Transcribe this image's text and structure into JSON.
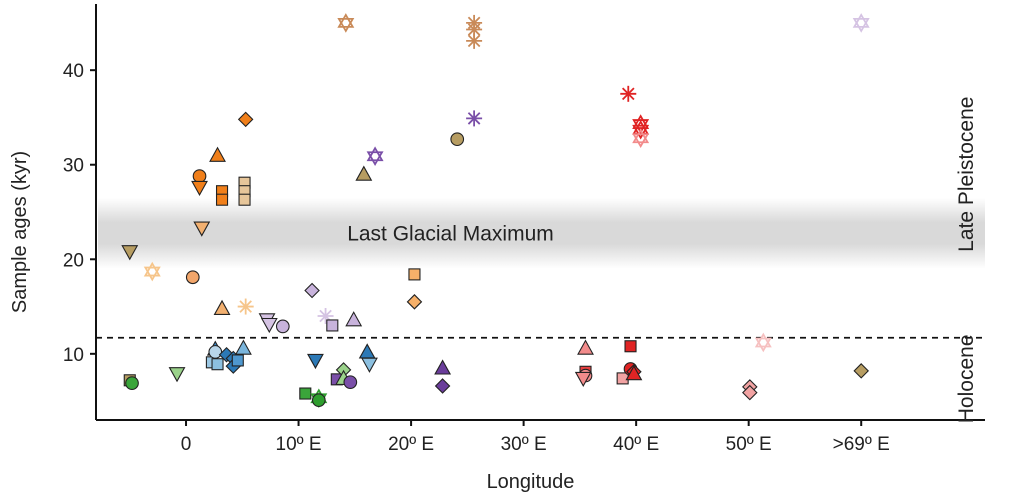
{
  "chart_data": {
    "type": "scatter",
    "title": "",
    "xlabel": "Longitude",
    "ylabel": "Sample ages (kyr)",
    "xlim": [
      -8,
      71
    ],
    "ylim": [
      3,
      47
    ],
    "x_ticks": [
      {
        "value": 0,
        "label": "0"
      },
      {
        "value": 10,
        "label": "10º E"
      },
      {
        "value": 20,
        "label": "20º E"
      },
      {
        "value": 30,
        "label": "30º E"
      },
      {
        "value": 40,
        "label": "40º E"
      },
      {
        "value": 50,
        "label": "50º E"
      },
      {
        "value": 60,
        "label": ">69º E"
      }
    ],
    "y_ticks": [
      {
        "value": 10,
        "label": "10"
      },
      {
        "value": 20,
        "label": "20"
      },
      {
        "value": 30,
        "label": "30"
      },
      {
        "value": 40,
        "label": "40"
      }
    ],
    "grid": false,
    "lgm_band": {
      "from": 19,
      "to": 26.5,
      "label": "Last Glacial Maximum"
    },
    "holocene_boundary": 11.7,
    "period_labels": [
      {
        "label": "Late Pleistocene",
        "from": 11.7,
        "to": 47
      },
      {
        "label": "Holocene",
        "from": 3,
        "to": 11.7
      }
    ],
    "points": [
      {
        "x": -5,
        "y": 7.2,
        "shape": "square",
        "color": "#b79d62"
      },
      {
        "x": -4.8,
        "y": 6.9,
        "shape": "circle",
        "color": "#3aa53a"
      },
      {
        "x": -5,
        "y": 20.8,
        "shape": "triangle-down",
        "color": "#b79d62"
      },
      {
        "x": -3,
        "y": 18.7,
        "shape": "hexagram",
        "color": "#f6c58a"
      },
      {
        "x": -0.8,
        "y": 7.9,
        "shape": "triangle-down",
        "color": "#9ad28a"
      },
      {
        "x": 0.6,
        "y": 18.1,
        "shape": "circle",
        "color": "#f2a66b"
      },
      {
        "x": 1.2,
        "y": 28.8,
        "shape": "circle",
        "color": "#f07f1a"
      },
      {
        "x": 1.2,
        "y": 27.6,
        "shape": "triangle-down",
        "color": "#f07f1a"
      },
      {
        "x": 1.4,
        "y": 23.3,
        "shape": "triangle-down",
        "color": "#f2b070"
      },
      {
        "x": 2.3,
        "y": 9.1,
        "shape": "square",
        "color": "#9cc8e4"
      },
      {
        "x": 2.6,
        "y": 10.5,
        "shape": "triangle",
        "color": "#3987c4"
      },
      {
        "x": 2.6,
        "y": 10.2,
        "shape": "circle",
        "color": "#b8d6ea"
      },
      {
        "x": 2.8,
        "y": 8.9,
        "shape": "square",
        "color": "#8cc0e0"
      },
      {
        "x": 2.8,
        "y": 31,
        "shape": "triangle",
        "color": "#f07f1a"
      },
      {
        "x": 3.2,
        "y": 27.2,
        "shape": "square",
        "color": "#f07f1a"
      },
      {
        "x": 3.2,
        "y": 26.3,
        "shape": "square",
        "color": "#f07f1a"
      },
      {
        "x": 3.2,
        "y": 14.8,
        "shape": "triangle",
        "color": "#f2b070"
      },
      {
        "x": 3.6,
        "y": 9.9,
        "shape": "diamond",
        "color": "#2c79b6"
      },
      {
        "x": 4.2,
        "y": 9.5,
        "shape": "diamond",
        "color": "#2c79b6"
      },
      {
        "x": 4.2,
        "y": 8.7,
        "shape": "diamond",
        "color": "#2c79b6"
      },
      {
        "x": 4.6,
        "y": 9.3,
        "shape": "square",
        "color": "#4f98cf"
      },
      {
        "x": 5.1,
        "y": 10.6,
        "shape": "triangle",
        "color": "#7ab5dc"
      },
      {
        "x": 5.2,
        "y": 28.1,
        "shape": "square",
        "color": "#e7c69a"
      },
      {
        "x": 5.2,
        "y": 27.2,
        "shape": "square",
        "color": "#e7c69a"
      },
      {
        "x": 5.2,
        "y": 26.3,
        "shape": "square",
        "color": "#e7c69a"
      },
      {
        "x": 5.3,
        "y": 34.8,
        "shape": "diamond",
        "color": "#f07f1a"
      },
      {
        "x": 5.3,
        "y": 15,
        "shape": "asterisk",
        "color": "#f6c58a"
      },
      {
        "x": 7.2,
        "y": 13.6,
        "shape": "triangle-down",
        "color": "#d5c3e3"
      },
      {
        "x": 7.4,
        "y": 13.1,
        "shape": "triangle-down",
        "color": "#d5c3e3"
      },
      {
        "x": 8.6,
        "y": 12.9,
        "shape": "circle",
        "color": "#c8b3dc"
      },
      {
        "x": 10.6,
        "y": 5.8,
        "shape": "square",
        "color": "#3aa53a"
      },
      {
        "x": 11.2,
        "y": 16.7,
        "shape": "diamond",
        "color": "#c8b3dc"
      },
      {
        "x": 11.5,
        "y": 9.3,
        "shape": "triangle-down",
        "color": "#2c79b6"
      },
      {
        "x": 11.8,
        "y": 5.3,
        "shape": "hexagram",
        "color": "#2e9e2e"
      },
      {
        "x": 11.8,
        "y": 5.1,
        "shape": "circle",
        "color": "#2e9e2e"
      },
      {
        "x": 12.4,
        "y": 14,
        "shape": "asterisk",
        "color": "#d5c3e3"
      },
      {
        "x": 13,
        "y": 13,
        "shape": "square",
        "color": "#c8b3dc"
      },
      {
        "x": 13.4,
        "y": 7.3,
        "shape": "square",
        "color": "#7a4fa8"
      },
      {
        "x": 14,
        "y": 8.3,
        "shape": "diamond",
        "color": "#9ad28a"
      },
      {
        "x": 14,
        "y": 7.4,
        "shape": "triangle",
        "color": "#9ad28a"
      },
      {
        "x": 14.2,
        "y": 45,
        "shape": "hexagram",
        "color": "#c98a58"
      },
      {
        "x": 14.6,
        "y": 7,
        "shape": "circle",
        "color": "#7a4fa8"
      },
      {
        "x": 14.9,
        "y": 13.6,
        "shape": "triangle",
        "color": "#c8b3dc"
      },
      {
        "x": 15.8,
        "y": 29,
        "shape": "triangle",
        "color": "#b79d62"
      },
      {
        "x": 16.1,
        "y": 10.2,
        "shape": "triangle",
        "color": "#2c79b6"
      },
      {
        "x": 16.3,
        "y": 8.9,
        "shape": "triangle-down",
        "color": "#8cc0e0"
      },
      {
        "x": 16.8,
        "y": 30.9,
        "shape": "hexagram",
        "color": "#7a4fa8"
      },
      {
        "x": 20.3,
        "y": 18.4,
        "shape": "square",
        "color": "#f6b069"
      },
      {
        "x": 20.3,
        "y": 15.5,
        "shape": "diamond",
        "color": "#f6b069"
      },
      {
        "x": 22.8,
        "y": 8.5,
        "shape": "triangle",
        "color": "#6a3d9a"
      },
      {
        "x": 22.8,
        "y": 6.6,
        "shape": "diamond",
        "color": "#6a3d9a"
      },
      {
        "x": 24.1,
        "y": 32.7,
        "shape": "circle",
        "color": "#b79d62"
      },
      {
        "x": 25.6,
        "y": 45,
        "shape": "asterisk",
        "color": "#c98a58"
      },
      {
        "x": 25.6,
        "y": 44.3,
        "shape": "asterisk",
        "color": "#c98a58"
      },
      {
        "x": 25.6,
        "y": 43.1,
        "shape": "asterisk",
        "color": "#c98a58"
      },
      {
        "x": 25.6,
        "y": 34.9,
        "shape": "asterisk",
        "color": "#7a4fa8"
      },
      {
        "x": 35.5,
        "y": 10.6,
        "shape": "triangle",
        "color": "#f28b8b"
      },
      {
        "x": 35.5,
        "y": 8.1,
        "shape": "square",
        "color": "#e84040"
      },
      {
        "x": 35.5,
        "y": 7.7,
        "shape": "circle",
        "color": "#f28b8b"
      },
      {
        "x": 35.3,
        "y": 7.4,
        "shape": "triangle-down",
        "color": "#f28b8b"
      },
      {
        "x": 38.8,
        "y": 7.4,
        "shape": "square",
        "color": "#f2a3a3"
      },
      {
        "x": 39.3,
        "y": 37.5,
        "shape": "asterisk",
        "color": "#e02424"
      },
      {
        "x": 39.5,
        "y": 10.8,
        "shape": "square",
        "color": "#e02424"
      },
      {
        "x": 39.5,
        "y": 8.4,
        "shape": "circle",
        "color": "#e02424"
      },
      {
        "x": 39.8,
        "y": 8.1,
        "shape": "diamond",
        "color": "#e02424"
      },
      {
        "x": 39.8,
        "y": 7.9,
        "shape": "triangle",
        "color": "#e02424"
      },
      {
        "x": 40.4,
        "y": 34.3,
        "shape": "hexagram",
        "color": "#e02424"
      },
      {
        "x": 40.4,
        "y": 33.7,
        "shape": "hexagram",
        "color": "#e02424"
      },
      {
        "x": 40.4,
        "y": 32.8,
        "shape": "hexagram",
        "color": "#f28b8b"
      },
      {
        "x": 50.1,
        "y": 6.5,
        "shape": "diamond",
        "color": "#f2a3a3"
      },
      {
        "x": 50.1,
        "y": 5.9,
        "shape": "diamond",
        "color": "#f2a3a3"
      },
      {
        "x": 51.3,
        "y": 11.2,
        "shape": "hexagram",
        "color": "#f6c0c0"
      },
      {
        "x": 60,
        "y": 8.2,
        "shape": "diamond",
        "color": "#b79d62"
      },
      {
        "x": 60,
        "y": 45,
        "shape": "hexagram",
        "color": "#d5c3e3"
      }
    ]
  }
}
